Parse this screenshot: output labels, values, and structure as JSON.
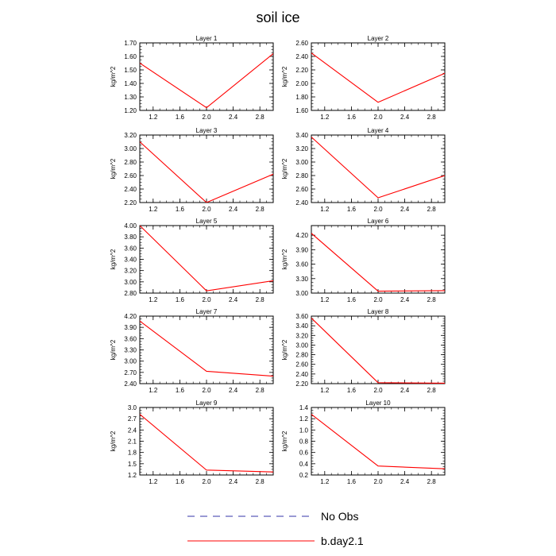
{
  "chart_data": {
    "type": "line",
    "title": "soil ice",
    "x": [
      1.0,
      2.0,
      3.0
    ],
    "xlim": [
      1.0,
      3.0
    ],
    "xticks": [
      "1.2",
      "1.6",
      "2.0",
      "2.4",
      "2.8"
    ],
    "legend": {
      "placement": "bottom-center",
      "entries": [
        {
          "label": "No Obs",
          "color": "#3333aa",
          "dashed": true
        },
        {
          "label": "b.day2.1",
          "color": "#ff0000",
          "dashed": false
        }
      ]
    },
    "panels": [
      {
        "title": "Layer 1",
        "ylabel": "kg/m^2",
        "ylim": [
          1.2,
          1.7
        ],
        "yticks": [
          "1.20",
          "1.30",
          "1.40",
          "1.50",
          "1.60",
          "1.70"
        ],
        "series": [
          {
            "name": "b.day2.1",
            "color": "#ff0000",
            "values": [
              1.55,
              1.22,
              1.62
            ]
          }
        ]
      },
      {
        "title": "Layer 2",
        "ylabel": "kg/m^2",
        "ylim": [
          1.6,
          2.6
        ],
        "yticks": [
          "1.60",
          "1.80",
          "2.00",
          "2.20",
          "2.40",
          "2.60"
        ],
        "series": [
          {
            "name": "b.day2.1",
            "color": "#ff0000",
            "values": [
              2.45,
              1.72,
              2.15
            ]
          }
        ]
      },
      {
        "title": "Layer 3",
        "ylabel": "kg/m^2",
        "ylim": [
          2.2,
          3.2
        ],
        "yticks": [
          "2.20",
          "2.40",
          "2.60",
          "2.80",
          "3.00",
          "3.20"
        ],
        "series": [
          {
            "name": "b.day2.1",
            "color": "#ff0000",
            "values": [
              3.1,
              2.2,
              2.62
            ]
          }
        ]
      },
      {
        "title": "Layer 4",
        "ylabel": "kg/m^2",
        "ylim": [
          2.4,
          3.4
        ],
        "yticks": [
          "2.40",
          "2.60",
          "2.80",
          "3.00",
          "3.20",
          "3.40"
        ],
        "series": [
          {
            "name": "b.day2.1",
            "color": "#ff0000",
            "values": [
              3.37,
              2.47,
              2.8
            ]
          }
        ]
      },
      {
        "title": "Layer 5",
        "ylabel": "kg/m^2",
        "ylim": [
          2.8,
          4.0
        ],
        "yticks": [
          "2.80",
          "3.00",
          "3.20",
          "3.40",
          "3.60",
          "3.80",
          "4.00"
        ],
        "series": [
          {
            "name": "b.day2.1",
            "color": "#ff0000",
            "values": [
              4.0,
              2.84,
              3.02
            ]
          }
        ]
      },
      {
        "title": "Layer 6",
        "ylabel": "kg/m^2",
        "ylim": [
          3.0,
          4.4
        ],
        "yticks": [
          "3.00",
          "3.30",
          "3.60",
          "3.90",
          "4.20"
        ],
        "series": [
          {
            "name": "b.day2.1",
            "color": "#ff0000",
            "values": [
              4.24,
              3.04,
              3.05
            ]
          }
        ]
      },
      {
        "title": "Layer 7",
        "ylabel": "kg/m^2",
        "ylim": [
          2.4,
          4.2
        ],
        "yticks": [
          "2.40",
          "2.70",
          "3.00",
          "3.30",
          "3.60",
          "3.90",
          "4.20"
        ],
        "series": [
          {
            "name": "b.day2.1",
            "color": "#ff0000",
            "values": [
              4.07,
              2.73,
              2.6
            ]
          }
        ]
      },
      {
        "title": "Layer 8",
        "ylabel": "kg/m^2",
        "ylim": [
          2.2,
          3.6
        ],
        "yticks": [
          "2.20",
          "2.40",
          "2.60",
          "2.80",
          "3.00",
          "3.20",
          "3.40",
          "3.60"
        ],
        "series": [
          {
            "name": "b.day2.1",
            "color": "#ff0000",
            "values": [
              3.56,
              2.22,
              2.21
            ]
          }
        ]
      },
      {
        "title": "Layer 9",
        "ylabel": "kg/m^2",
        "ylim": [
          1.2,
          3.0
        ],
        "yticks": [
          "1.2",
          "1.5",
          "1.8",
          "2.1",
          "2.4",
          "2.7",
          "3.0"
        ],
        "series": [
          {
            "name": "b.day2.1",
            "color": "#ff0000",
            "values": [
              2.82,
              1.33,
              1.28
            ]
          }
        ]
      },
      {
        "title": "Layer 10",
        "ylabel": "kg/m^2",
        "ylim": [
          0.2,
          1.4
        ],
        "yticks": [
          "0.2",
          "0.4",
          "0.6",
          "0.8",
          "1.0",
          "1.2",
          "1.4"
        ],
        "series": [
          {
            "name": "b.day2.1",
            "color": "#ff0000",
            "values": [
              1.28,
              0.36,
              0.31
            ]
          }
        ]
      }
    ]
  }
}
